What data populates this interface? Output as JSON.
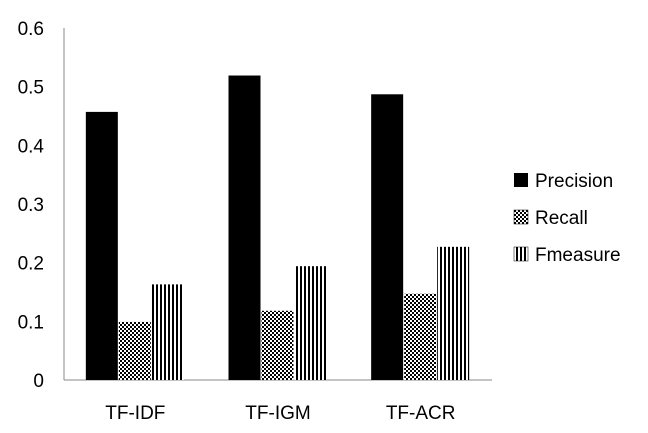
{
  "chart_data": {
    "type": "bar",
    "categories": [
      "TF-IDF",
      "TF-IGM",
      "TF-ACR"
    ],
    "series": [
      {
        "name": "Precision",
        "values": [
          0.457,
          0.519,
          0.487
        ],
        "pattern": "solid"
      },
      {
        "name": "Recall",
        "values": [
          0.099,
          0.118,
          0.147
        ],
        "pattern": "dots"
      },
      {
        "name": "Fmeasure",
        "values": [
          0.163,
          0.194,
          0.227
        ],
        "pattern": "vertical-stripes"
      }
    ],
    "ylim": [
      0,
      0.6
    ],
    "yticks": [
      "0",
      "0.1",
      "0.2",
      "0.3",
      "0.4",
      "0.5",
      "0.6"
    ],
    "grid": false,
    "legend_position": "right",
    "colors": {
      "bar": "#000000",
      "axis": "#888888",
      "background": "#ffffff"
    }
  }
}
